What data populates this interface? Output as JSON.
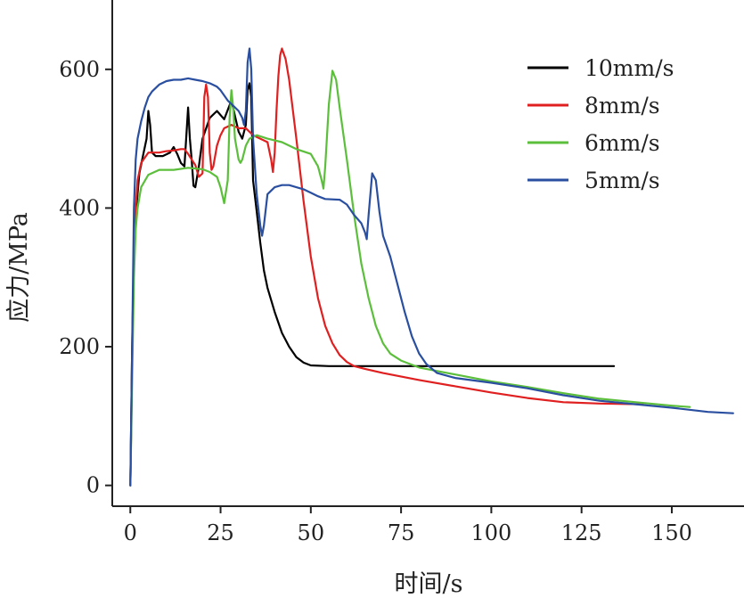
{
  "chart_data": {
    "type": "line",
    "title": "",
    "xlabel": "时间/s",
    "ylabel": "应力/MPa",
    "xlim": [
      -5,
      170
    ],
    "ylim": [
      -30,
      700
    ],
    "xticks": [
      0,
      25,
      50,
      75,
      100,
      125,
      150
    ],
    "yticks": [
      0,
      200,
      400,
      600
    ],
    "x_tick_labels": [
      "0",
      "25",
      "50",
      "75",
      "100",
      "125",
      "150"
    ],
    "y_tick_labels": [
      "0",
      "200",
      "400",
      "600"
    ],
    "grid": false,
    "legend_position": "top-right",
    "series": [
      {
        "name": "10mm/s",
        "color": "#000000",
        "points": [
          [
            0,
            0
          ],
          [
            0.5,
            200
          ],
          [
            1,
            330
          ],
          [
            1.5,
            390
          ],
          [
            2.5,
            450
          ],
          [
            3.5,
            475
          ],
          [
            4.5,
            500
          ],
          [
            5,
            540
          ],
          [
            5.5,
            520
          ],
          [
            6,
            480
          ],
          [
            7,
            475
          ],
          [
            9,
            475
          ],
          [
            11,
            480
          ],
          [
            12,
            488
          ],
          [
            13,
            478
          ],
          [
            14,
            465
          ],
          [
            15,
            460
          ],
          [
            16,
            545
          ],
          [
            16.5,
            500
          ],
          [
            17,
            470
          ],
          [
            17.5,
            432
          ],
          [
            18,
            430
          ],
          [
            19,
            460
          ],
          [
            20,
            500
          ],
          [
            22,
            530
          ],
          [
            24,
            540
          ],
          [
            26,
            528
          ],
          [
            28,
            555
          ],
          [
            30,
            510
          ],
          [
            31,
            500
          ],
          [
            32,
            520
          ],
          [
            32.5,
            570
          ],
          [
            33,
            580
          ],
          [
            33.5,
            560
          ],
          [
            34,
            440
          ],
          [
            35,
            395
          ],
          [
            36,
            350
          ],
          [
            37,
            310
          ],
          [
            38,
            285
          ],
          [
            40,
            250
          ],
          [
            42,
            220
          ],
          [
            44,
            200
          ],
          [
            46,
            185
          ],
          [
            48,
            177
          ],
          [
            50,
            173
          ],
          [
            55,
            172
          ],
          [
            70,
            172
          ],
          [
            90,
            172
          ],
          [
            110,
            172
          ],
          [
            134,
            172
          ]
        ]
      },
      {
        "name": "8mm/s",
        "color": "#e02020",
        "points": [
          [
            0,
            0
          ],
          [
            0.5,
            180
          ],
          [
            1,
            330
          ],
          [
            1.5,
            400
          ],
          [
            2,
            440
          ],
          [
            3,
            465
          ],
          [
            5,
            480
          ],
          [
            8,
            480
          ],
          [
            10,
            482
          ],
          [
            12,
            483
          ],
          [
            14,
            485
          ],
          [
            15,
            485
          ],
          [
            16,
            478
          ],
          [
            17,
            470
          ],
          [
            18,
            462
          ],
          [
            19,
            445
          ],
          [
            20,
            450
          ],
          [
            20.5,
            560
          ],
          [
            21,
            578
          ],
          [
            21.5,
            560
          ],
          [
            22,
            480
          ],
          [
            22.5,
            455
          ],
          [
            23,
            460
          ],
          [
            24,
            490
          ],
          [
            25,
            505
          ],
          [
            26,
            515
          ],
          [
            28,
            520
          ],
          [
            30,
            515
          ],
          [
            32,
            515
          ],
          [
            34,
            505
          ],
          [
            36,
            500
          ],
          [
            38,
            495
          ],
          [
            39,
            470
          ],
          [
            39.5,
            452
          ],
          [
            40,
            480
          ],
          [
            40.5,
            540
          ],
          [
            41,
            590
          ],
          [
            41.5,
            620
          ],
          [
            42,
            630
          ],
          [
            43,
            615
          ],
          [
            44,
            585
          ],
          [
            46,
            500
          ],
          [
            48,
            410
          ],
          [
            50,
            330
          ],
          [
            52,
            270
          ],
          [
            54,
            230
          ],
          [
            56,
            205
          ],
          [
            58,
            188
          ],
          [
            60,
            178
          ],
          [
            62,
            172
          ],
          [
            65,
            168
          ],
          [
            70,
            162
          ],
          [
            80,
            152
          ],
          [
            90,
            143
          ],
          [
            100,
            134
          ],
          [
            110,
            126
          ],
          [
            120,
            120
          ],
          [
            130,
            118
          ],
          [
            142,
            117
          ]
        ]
      },
      {
        "name": "6mm/s",
        "color": "#5cbf3c",
        "points": [
          [
            0,
            0
          ],
          [
            0.5,
            150
          ],
          [
            1,
            300
          ],
          [
            1.5,
            370
          ],
          [
            2,
            400
          ],
          [
            3,
            430
          ],
          [
            5,
            448
          ],
          [
            8,
            455
          ],
          [
            12,
            455
          ],
          [
            16,
            458
          ],
          [
            20,
            456
          ],
          [
            22,
            452
          ],
          [
            24,
            445
          ],
          [
            25,
            430
          ],
          [
            26,
            407
          ],
          [
            27,
            440
          ],
          [
            27.5,
            530
          ],
          [
            28,
            570
          ],
          [
            28.5,
            545
          ],
          [
            29,
            500
          ],
          [
            30,
            470
          ],
          [
            30.5,
            465
          ],
          [
            31,
            470
          ],
          [
            32,
            490
          ],
          [
            33,
            500
          ],
          [
            35,
            505
          ],
          [
            38,
            500
          ],
          [
            42,
            495
          ],
          [
            46,
            485
          ],
          [
            50,
            478
          ],
          [
            52,
            460
          ],
          [
            53,
            440
          ],
          [
            53.5,
            428
          ],
          [
            54,
            460
          ],
          [
            55,
            550
          ],
          [
            56,
            598
          ],
          [
            57,
            585
          ],
          [
            58,
            545
          ],
          [
            60,
            470
          ],
          [
            62,
            390
          ],
          [
            64,
            320
          ],
          [
            66,
            270
          ],
          [
            68,
            230
          ],
          [
            70,
            205
          ],
          [
            72,
            190
          ],
          [
            75,
            180
          ],
          [
            80,
            170
          ],
          [
            90,
            160
          ],
          [
            100,
            150
          ],
          [
            110,
            142
          ],
          [
            120,
            133
          ],
          [
            130,
            125
          ],
          [
            140,
            120
          ],
          [
            150,
            115
          ],
          [
            155,
            113
          ]
        ]
      },
      {
        "name": "5mm/s",
        "color": "#2a4fa0",
        "points": [
          [
            0,
            0
          ],
          [
            0.5,
            200
          ],
          [
            1,
            400
          ],
          [
            1.5,
            470
          ],
          [
            2,
            500
          ],
          [
            3,
            525
          ],
          [
            4,
            545
          ],
          [
            5,
            560
          ],
          [
            6,
            568
          ],
          [
            8,
            578
          ],
          [
            10,
            583
          ],
          [
            12,
            585
          ],
          [
            14,
            585
          ],
          [
            16,
            587
          ],
          [
            18,
            585
          ],
          [
            20,
            583
          ],
          [
            22,
            580
          ],
          [
            24,
            575
          ],
          [
            25,
            570
          ],
          [
            27,
            555
          ],
          [
            29,
            545
          ],
          [
            30,
            540
          ],
          [
            31,
            530
          ],
          [
            31.5,
            520
          ],
          [
            32,
            540
          ],
          [
            32.5,
            610
          ],
          [
            33,
            630
          ],
          [
            33.5,
            600
          ],
          [
            34,
            500
          ],
          [
            35,
            420
          ],
          [
            36,
            375
          ],
          [
            36.5,
            360
          ],
          [
            37,
            375
          ],
          [
            38,
            420
          ],
          [
            40,
            430
          ],
          [
            42,
            433
          ],
          [
            44,
            433
          ],
          [
            46,
            430
          ],
          [
            48,
            427
          ],
          [
            50,
            422
          ],
          [
            52,
            417
          ],
          [
            54,
            413
          ],
          [
            58,
            412
          ],
          [
            60,
            405
          ],
          [
            62,
            390
          ],
          [
            64,
            378
          ],
          [
            65,
            365
          ],
          [
            65.5,
            355
          ],
          [
            66,
            390
          ],
          [
            67,
            450
          ],
          [
            68,
            440
          ],
          [
            69,
            395
          ],
          [
            70,
            360
          ],
          [
            72,
            330
          ],
          [
            74,
            290
          ],
          [
            76,
            250
          ],
          [
            78,
            215
          ],
          [
            80,
            190
          ],
          [
            82,
            175
          ],
          [
            85,
            162
          ],
          [
            90,
            155
          ],
          [
            100,
            148
          ],
          [
            110,
            140
          ],
          [
            120,
            130
          ],
          [
            130,
            122
          ],
          [
            140,
            117
          ],
          [
            150,
            112
          ],
          [
            160,
            106
          ],
          [
            167,
            104
          ]
        ]
      }
    ]
  }
}
